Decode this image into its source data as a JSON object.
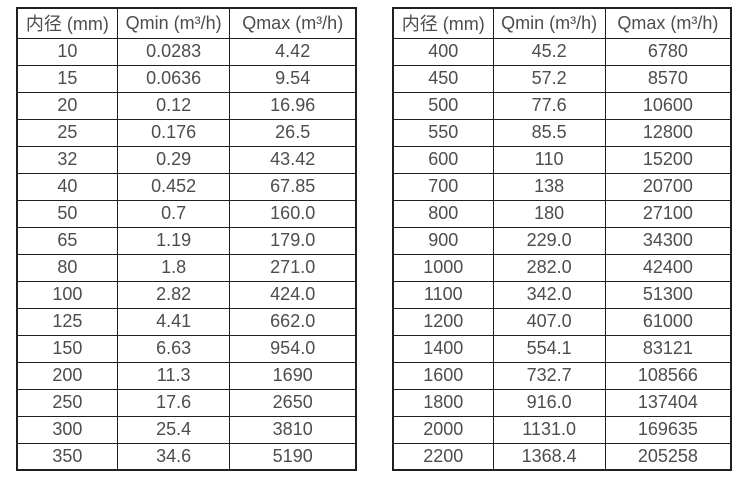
{
  "page": {
    "background": "#ffffff",
    "text_color": "#4d4d4d",
    "border_color": "#1f1f1f"
  },
  "tables": [
    {
      "name": "small-diameter-flow-table",
      "headers": [
        "内径 (mm)",
        "Qmin (m³/h)",
        "Qmax (m³/h)"
      ],
      "rows": [
        [
          "10",
          "0.0283",
          "4.42"
        ],
        [
          "15",
          "0.0636",
          "9.54"
        ],
        [
          "20",
          "0.12",
          "16.96"
        ],
        [
          "25",
          "0.176",
          "26.5"
        ],
        [
          "32",
          "0.29",
          "43.42"
        ],
        [
          "40",
          "0.452",
          "67.85"
        ],
        [
          "50",
          "0.7",
          "160.0"
        ],
        [
          "65",
          "1.19",
          "179.0"
        ],
        [
          "80",
          "1.8",
          "271.0"
        ],
        [
          "100",
          "2.82",
          "424.0"
        ],
        [
          "125",
          "4.41",
          "662.0"
        ],
        [
          "150",
          "6.63",
          "954.0"
        ],
        [
          "200",
          "11.3",
          "1690"
        ],
        [
          "250",
          "17.6",
          "2650"
        ],
        [
          "300",
          "25.4",
          "3810"
        ],
        [
          "350",
          "34.6",
          "5190"
        ]
      ]
    },
    {
      "name": "large-diameter-flow-table",
      "headers": [
        "内径 (mm)",
        "Qmin (m³/h)",
        "Qmax (m³/h)"
      ],
      "rows": [
        [
          "400",
          "45.2",
          "6780"
        ],
        [
          "450",
          "57.2",
          "8570"
        ],
        [
          "500",
          "77.6",
          "10600"
        ],
        [
          "550",
          "85.5",
          "12800"
        ],
        [
          "600",
          "110",
          "15200"
        ],
        [
          "700",
          "138",
          "20700"
        ],
        [
          "800",
          "180",
          "27100"
        ],
        [
          "900",
          "229.0",
          "34300"
        ],
        [
          "1000",
          "282.0",
          "42400"
        ],
        [
          "1100",
          "342.0",
          "51300"
        ],
        [
          "1200",
          "407.0",
          "61000"
        ],
        [
          "1400",
          "554.1",
          "83121"
        ],
        [
          "1600",
          "732.7",
          "108566"
        ],
        [
          "1800",
          "916.0",
          "137404"
        ],
        [
          "2000",
          "1131.0",
          "169635"
        ],
        [
          "2200",
          "1368.4",
          "205258"
        ]
      ]
    }
  ]
}
